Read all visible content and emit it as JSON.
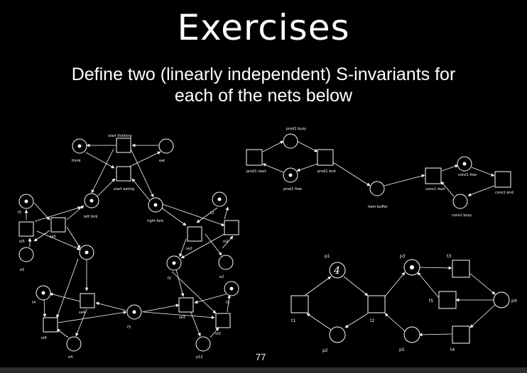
{
  "slide": {
    "title": "Exercises",
    "subtitle_line1": "Define two (linearly independent) S-invariants for",
    "subtitle_line2": "each of the nets below",
    "page_number": "77"
  },
  "philosophers_net": {
    "labels": {
      "start_thinking": "start thinking",
      "think": "think",
      "eat": "eat",
      "start_eating": "start eating",
      "left_fork": "left fork",
      "right_fork": "right fork",
      "t5": "t5",
      "se5": "se5",
      "st5": "st5",
      "e5": "e5",
      "t2": "t2",
      "se2": "se2",
      "st2": "st2",
      "f2": "f2",
      "e2": "e2",
      "t4": "t4",
      "se4": "se4",
      "st4": "st4",
      "e4": "e4",
      "f3": "f3",
      "se3": "se3",
      "t3": "t3",
      "st3": "st3",
      "e3": "e3",
      "p12": "p12"
    }
  },
  "producer_consumer_net": {
    "labels": {
      "prod1_busy": "prod1 busy",
      "prod1_start": "prod1 start",
      "prod1_free": "prod1 free",
      "prod1_end": "prod1 end",
      "item_buffer": "item buffer",
      "cons1_start": "cons1 start",
      "cons1_free": "cons1 free",
      "cons1_busy": "cons1 busy",
      "cons1_end": "cons1 end"
    }
  },
  "p_t_net": {
    "labels": {
      "p1": "p1",
      "p2": "p2",
      "p3": "p3",
      "p4": "p4",
      "p5": "p5",
      "t1": "t1",
      "t2": "t2",
      "t3": "t3",
      "t4": "t4",
      "t5": "t5"
    },
    "p1_tokens": "4"
  }
}
